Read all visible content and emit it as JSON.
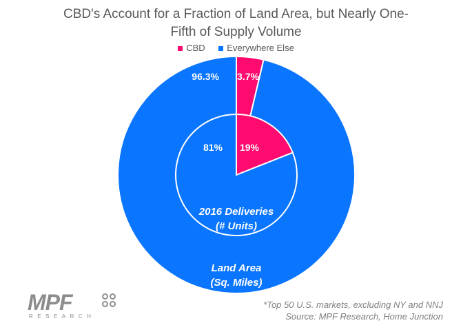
{
  "chart_data": {
    "type": "pie",
    "title": "CBD's Account for a Fraction of Land Area, but Nearly One-Fifth of Supply Volume",
    "legend": [
      "CBD",
      "Everywhere Else"
    ],
    "colors": {
      "CBD": "#ff0a6e",
      "Everywhere Else": "#0a75ff"
    },
    "rings": [
      {
        "label": "Land Area (Sq. Miles)",
        "label_lines": [
          "Land Area",
          "(Sq. Miles)"
        ],
        "values": [
          3.7,
          96.3
        ],
        "value_labels": [
          "3.7%",
          "96.3%"
        ]
      },
      {
        "label": "2016 Deliveries (# Units)",
        "label_lines": [
          "2016 Deliveries",
          "(# Units)"
        ],
        "values": [
          19,
          81
        ],
        "value_labels": [
          "19%",
          "81%"
        ]
      }
    ]
  },
  "footnote": {
    "line1": "*Top 50 U.S. markets, excluding NY and NNJ",
    "line2": "Source: MPF Research, Home Junction"
  },
  "logo": {
    "text": "MPF",
    "sub": "RESEARCH"
  }
}
